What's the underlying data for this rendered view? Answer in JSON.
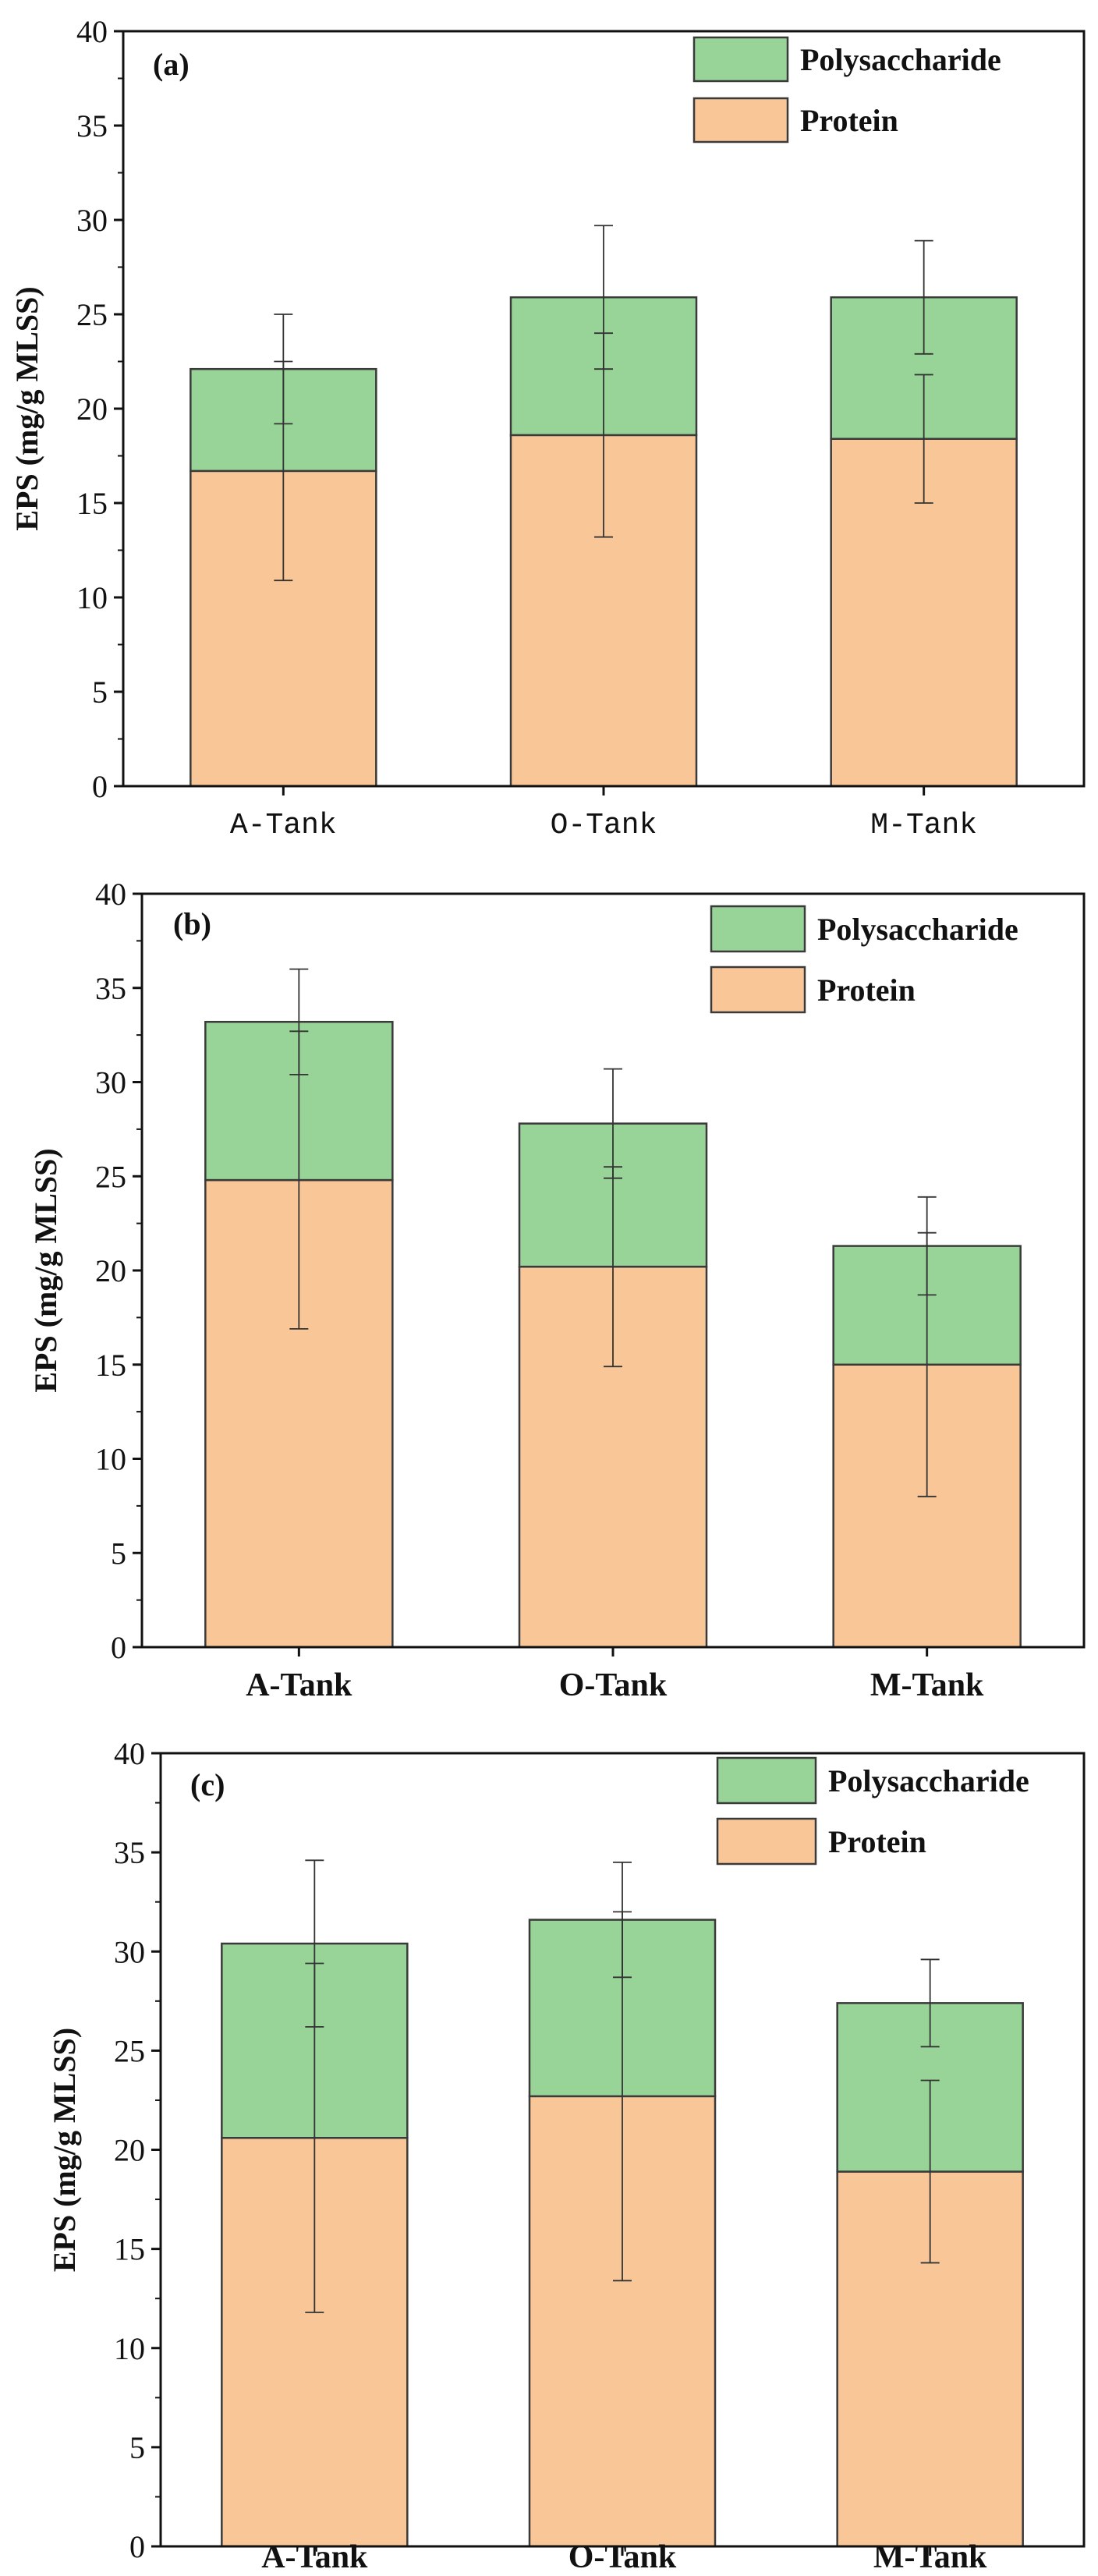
{
  "colors": {
    "polysaccharide": "#98d498",
    "protein": "#f9c698",
    "axis": "#111111",
    "bar_edge": "#3a3a3a",
    "error_bar": "#333333"
  },
  "chart_data": [
    {
      "type": "bar",
      "stacked": true,
      "panel_label": "(a)",
      "categories": [
        "A-Tank",
        "O-Tank",
        "M-Tank"
      ],
      "ylabel": "EPS (mg/g MLSS)",
      "ylim": [
        0,
        40
      ],
      "yticks": [
        0,
        5,
        10,
        15,
        20,
        25,
        30,
        35,
        40
      ],
      "ytick_labels": [
        "0",
        "5",
        "10",
        "15",
        "20",
        "25",
        "30",
        "35",
        "40"
      ],
      "legend": {
        "position": "top-right",
        "entries": [
          "Polysaccharide",
          "Protein"
        ]
      },
      "series": [
        {
          "name": "Protein",
          "values": [
            16.7,
            18.6,
            18.4
          ],
          "errors": [
            5.8,
            5.4,
            3.4
          ]
        },
        {
          "name": "Polysaccharide",
          "values": [
            5.4,
            7.3,
            7.5
          ],
          "errors": [
            2.9,
            3.8,
            3.0
          ]
        }
      ]
    },
    {
      "type": "bar",
      "stacked": true,
      "panel_label": "(b)",
      "categories": [
        "A-Tank",
        "O-Tank",
        "M-Tank"
      ],
      "ylabel": "EPS (mg/g MLSS)",
      "ylim": [
        0,
        40
      ],
      "yticks": [
        0,
        5,
        10,
        15,
        20,
        25,
        30,
        35,
        40
      ],
      "ytick_labels": [
        "0",
        "5",
        "10",
        "15",
        "20",
        "25",
        "30",
        "35",
        "40"
      ],
      "legend": {
        "position": "top-right",
        "entries": [
          "Polysaccharide",
          "Protein"
        ]
      },
      "series": [
        {
          "name": "Protein",
          "values": [
            24.8,
            20.2,
            15.0
          ],
          "errors": [
            7.9,
            5.3,
            7.0
          ]
        },
        {
          "name": "Polysaccharide",
          "values": [
            8.4,
            7.6,
            6.3
          ],
          "errors": [
            2.8,
            2.9,
            2.6
          ]
        }
      ]
    },
    {
      "type": "bar",
      "stacked": true,
      "panel_label": "(c)",
      "categories": [
        "A-Tank",
        "O-Tank",
        "M-Tank"
      ],
      "ylabel": "EPS (mg/g MLSS)",
      "ylim": [
        0,
        40
      ],
      "yticks": [
        0,
        5,
        10,
        15,
        20,
        25,
        30,
        35,
        40
      ],
      "ytick_labels": [
        "0",
        "5",
        "10",
        "15",
        "20",
        "25",
        "30",
        "35",
        "40"
      ],
      "legend": {
        "position": "top-right",
        "entries": [
          "Polysaccharide",
          "Protein"
        ]
      },
      "series": [
        {
          "name": "Protein",
          "values": [
            20.6,
            22.7,
            18.9
          ],
          "errors": [
            8.8,
            9.3,
            4.6
          ]
        },
        {
          "name": "Polysaccharide",
          "values": [
            9.8,
            8.9,
            8.5
          ],
          "errors": [
            4.2,
            2.9,
            2.2
          ]
        }
      ]
    }
  ]
}
